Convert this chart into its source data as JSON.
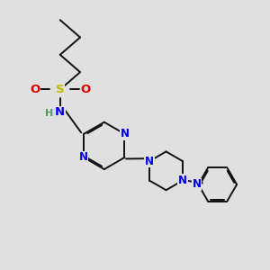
{
  "background_color": "#e0e0e0",
  "bond_color": "#111111",
  "N_color": "#0000ee",
  "O_color": "#dd0000",
  "S_color": "#bbbb00",
  "H_color": "#559955",
  "lw": 1.4,
  "fs": 8.5,
  "fig_size": [
    3.0,
    3.0
  ],
  "dpi": 100,
  "xlim": [
    0,
    10
  ],
  "ylim": [
    0,
    10
  ]
}
